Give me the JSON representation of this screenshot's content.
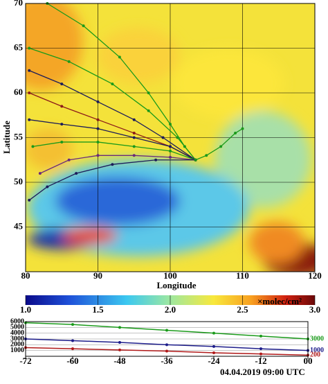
{
  "map": {
    "type": "trajectory-map",
    "xlabel": "Longitude",
    "ylabel": "Latitude",
    "xlim": [
      80,
      120
    ],
    "ylim": [
      40,
      70
    ],
    "xticks": [
      80,
      90,
      100,
      110,
      120
    ],
    "yticks": [
      45,
      50,
      55,
      60,
      65,
      70
    ],
    "trajectories": [
      {
        "color": "#1a9a1a",
        "lon": [
          83,
          88,
          93,
          97,
          100,
          102,
          103.5
        ],
        "lat": [
          70,
          67.5,
          64,
          60,
          56.5,
          54,
          52.5
        ]
      },
      {
        "color": "#1a9a1a",
        "lon": [
          80.5,
          86,
          92,
          97,
          101,
          103.5
        ],
        "lat": [
          65,
          63.5,
          61,
          58,
          55,
          52.5
        ]
      },
      {
        "color": "#1c1c5a",
        "lon": [
          80.5,
          85,
          90,
          95,
          99,
          103.5
        ],
        "lat": [
          62.5,
          61,
          59,
          57,
          55,
          52.5
        ]
      },
      {
        "color": "#8b1a1a",
        "lon": [
          80.5,
          85,
          90,
          95,
          100,
          103.5
        ],
        "lat": [
          60,
          58.5,
          57,
          55.5,
          54,
          52.5
        ]
      },
      {
        "color": "#1c1c5a",
        "lon": [
          80.5,
          85,
          90,
          95,
          100,
          103.5
        ],
        "lat": [
          57,
          56.5,
          56,
          55,
          54,
          52.5
        ]
      },
      {
        "color": "#1a9a1a",
        "lon": [
          81,
          85,
          90,
          95,
          100,
          103.5
        ],
        "lat": [
          54,
          54.5,
          54.5,
          54,
          53.5,
          52.5
        ]
      },
      {
        "color": "#6a2a7a",
        "lon": [
          82,
          86,
          90,
          95,
          100,
          103.5
        ],
        "lat": [
          51,
          52.5,
          53,
          53,
          52.8,
          52.5
        ]
      },
      {
        "color": "#1c1c5a",
        "lon": [
          80.5,
          83,
          87,
          92,
          98,
          103.5
        ],
        "lat": [
          48,
          49.5,
          51,
          52,
          52.5,
          52.5
        ]
      },
      {
        "color": "#1a9a1a",
        "lon": [
          103.5,
          105,
          107,
          109,
          110
        ],
        "lat": [
          52.5,
          53,
          54,
          55.5,
          56
        ]
      }
    ]
  },
  "colorbar": {
    "type": "colorbar",
    "lim": [
      1,
      3
    ],
    "unit": "×molec/cm²",
    "ticks": [
      {
        "value": 1,
        "label": "1.0"
      },
      {
        "value": 1.5,
        "label": "1.5"
      },
      {
        "value": 2,
        "label": "2.0"
      },
      {
        "value": 2.5,
        "label": "2.5"
      },
      {
        "value": 3,
        "label": "3.0"
      }
    ]
  },
  "altitude": {
    "type": "line",
    "xlim": [
      -72,
      0
    ],
    "ylim": [
      0,
      6000
    ],
    "xticks": [
      -72,
      -60,
      -48,
      -36,
      -24,
      -12,
      {
        "value": 0,
        "label": "00"
      }
    ],
    "yticks": [
      1000,
      2000,
      3000,
      4000,
      5000,
      6000
    ],
    "x": [
      -72,
      -60,
      -48,
      -36,
      -24,
      -12,
      0
    ],
    "series": [
      {
        "color": "#1a9a1a",
        "values": [
          5800,
          5500,
          5000,
          4500,
          4000,
          3500,
          3000
        ]
      },
      {
        "color": "#1c1c8a",
        "values": [
          3000,
          2700,
          2400,
          2000,
          1700,
          1300,
          1000
        ]
      },
      {
        "color": "#b01818",
        "values": [
          1500,
          1300,
          1100,
          900,
          600,
          400,
          200
        ]
      }
    ],
    "date": "04.04.2019 09:00 UTC"
  }
}
